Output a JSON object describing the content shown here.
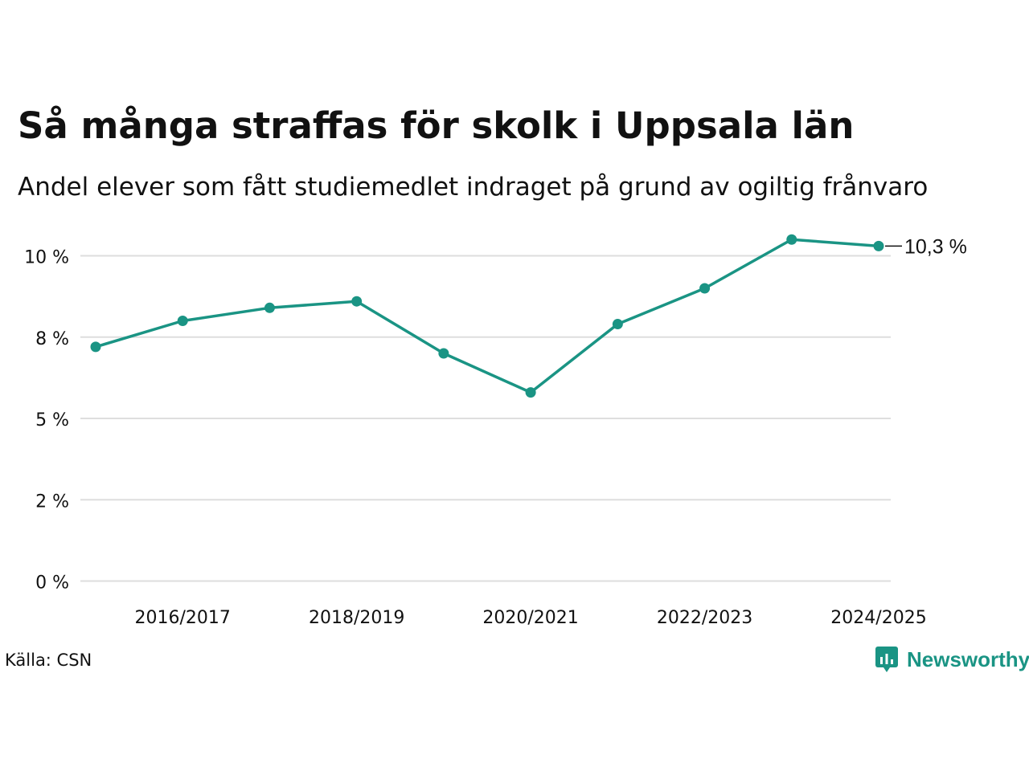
{
  "header": {
    "title": "Så många straffas för skolk i Uppsala län",
    "subtitle": "Andel elever som fått studiemedlet indraget på grund av ogiltig frånvaro"
  },
  "footer": {
    "source": "Källa: CSN",
    "brand": "Newsworthy"
  },
  "colors": {
    "series": "#1a9484",
    "grid": "#dedede",
    "text": "#111111"
  },
  "chart_data": {
    "type": "line",
    "title": "Så många straffas för skolk i Uppsala län",
    "subtitle": "Andel elever som fått studiemedlet indraget på grund av ogiltig frånvaro",
    "x": [
      "2015/2016",
      "2016/2017",
      "2017/2018",
      "2018/2019",
      "2019/2020",
      "2020/2021",
      "2021/2022",
      "2022/2023",
      "2023/2024",
      "2024/2025"
    ],
    "x_tick_labels": [
      "2016/2017",
      "2018/2019",
      "2020/2021",
      "2022/2023",
      "2024/2025"
    ],
    "y_tick_labels": [
      "0 %",
      "2 %",
      "5 %",
      "8 %",
      "10 %"
    ],
    "y_ticks": [
      0,
      2.5,
      5,
      7.5,
      10
    ],
    "ylim": [
      0,
      10.5
    ],
    "series": [
      {
        "values": [
          7.2,
          8.0,
          8.4,
          8.6,
          7.0,
          5.8,
          7.9,
          9.0,
          10.5,
          10.3
        ]
      }
    ],
    "end_label": "10,3 %",
    "grid": true,
    "legend": "none"
  }
}
